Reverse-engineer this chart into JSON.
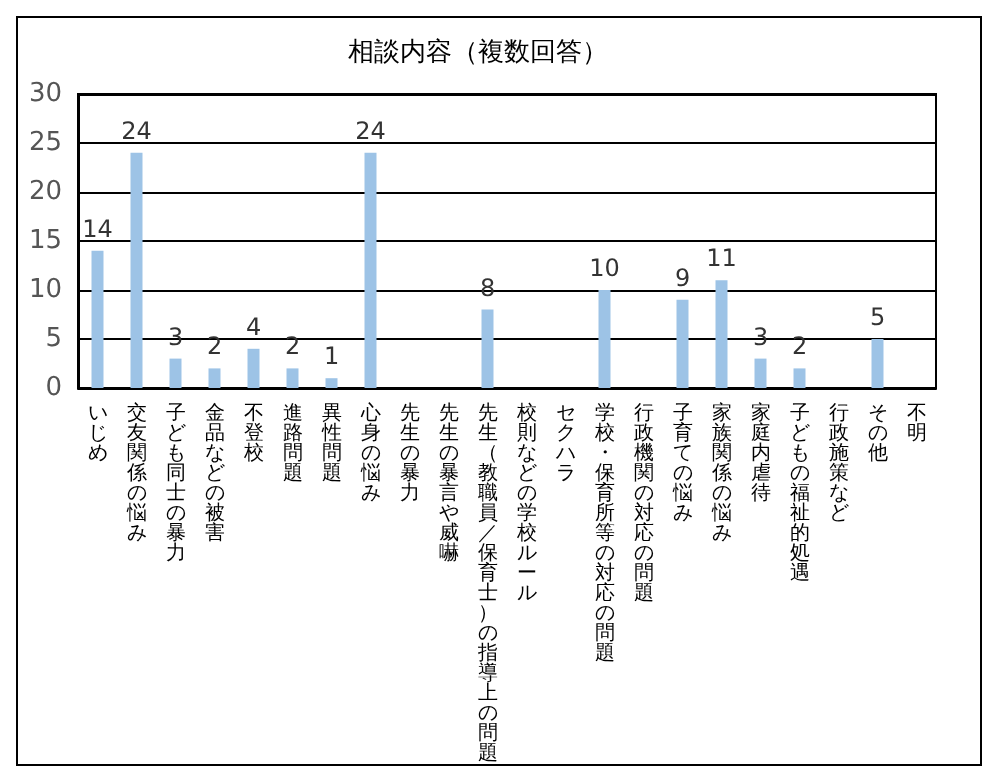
{
  "chart_data": {
    "type": "bar",
    "title": "相談内容（複数回答）",
    "categories": [
      "いじめ",
      "交友関係の悩み",
      "子ども同士の暴力",
      "金品などの被害",
      "不登校",
      "進路問題",
      "異性問題",
      "心身の悩み",
      "先生の暴力",
      "先生の暴言や威嚇",
      "先生（教職員／保育士）の指導上の問題",
      "校則などの学校ルール",
      "セクハラ",
      "学校・保育所等の対応の問題",
      "行政機関の対応の問題",
      "子育ての悩み",
      "家族関係の悩み",
      "家庭内虐待",
      "子どもの福祉的処遇",
      "行政施策など",
      "その他",
      "不明"
    ],
    "values": [
      14,
      24,
      3,
      2,
      4,
      2,
      1,
      24,
      0,
      0,
      8,
      0,
      0,
      10,
      0,
      9,
      11,
      3,
      2,
      0,
      5,
      0
    ],
    "value_labels": [
      "14",
      "24",
      "3",
      "2",
      "4",
      "2",
      "1",
      "24",
      null,
      null,
      "8",
      null,
      null,
      "10",
      null,
      "9",
      "11",
      "3",
      "2",
      null,
      "5",
      null
    ],
    "color": "#9dc3e6",
    "ylim": [
      0,
      30
    ],
    "yticks": [
      0,
      5,
      10,
      15,
      20,
      25,
      30
    ],
    "grid": "y"
  }
}
